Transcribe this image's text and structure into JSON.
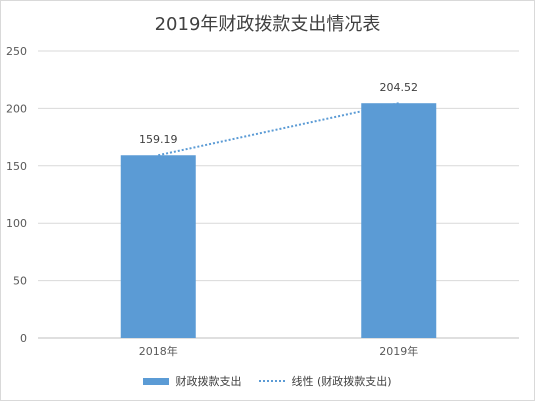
{
  "chart_data": {
    "type": "bar",
    "title": "2019年财政拨款支出情况表",
    "categories": [
      "2018年",
      "2019年"
    ],
    "series": [
      {
        "name": "财政拨款支出",
        "values": [
          159.19,
          204.52
        ],
        "color": "#5b9bd5"
      }
    ],
    "trendline": {
      "name": "线性 (财政拨款支出)",
      "type": "linear",
      "style": "dotted",
      "color": "#5b9bd5"
    },
    "data_labels": [
      "159.19",
      "204.52"
    ],
    "ylim": [
      0,
      250
    ],
    "yticks": [
      0,
      50,
      100,
      150,
      200,
      250
    ],
    "grid": true,
    "legend_position": "bottom",
    "xlabel": "",
    "ylabel": ""
  }
}
